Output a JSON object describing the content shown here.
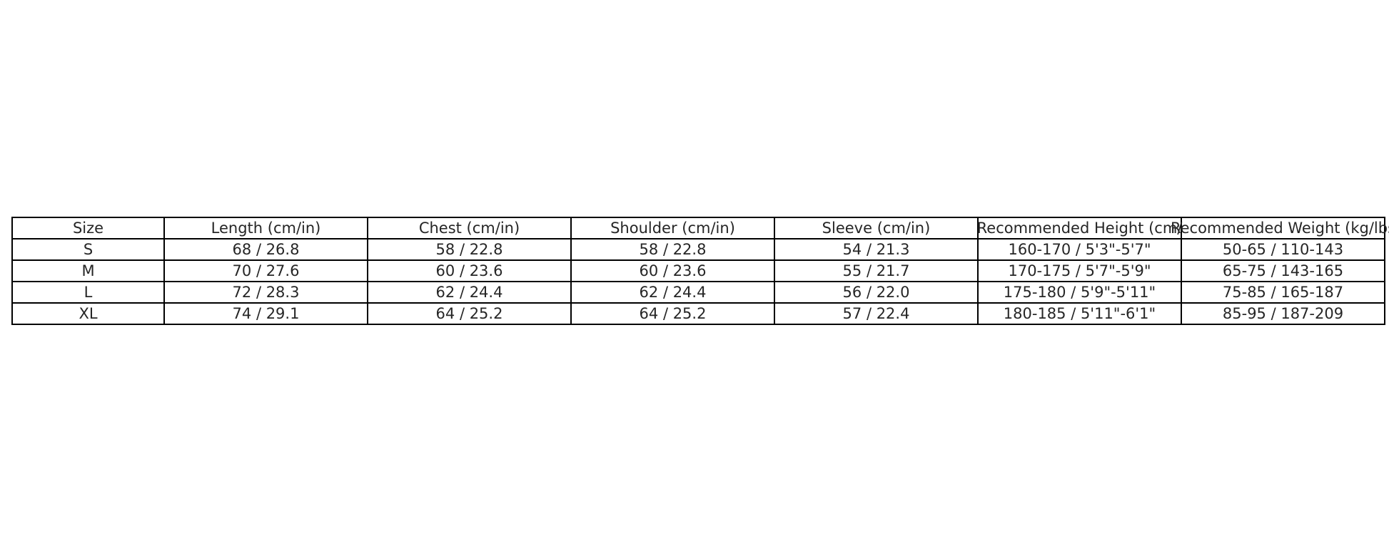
{
  "chart_data": {
    "type": "table",
    "columns": [
      "Size",
      "Length (cm/in)",
      "Chest (cm/in)",
      "Shoulder (cm/in)",
      "Sleeve (cm/in)",
      "Recommended Height (cm/",
      "Recommended Weight (kg/lbs"
    ],
    "rows": [
      [
        "S",
        "68 / 26.8",
        "58 / 22.8",
        "58 / 22.8",
        "54 / 21.3",
        "160-170 / 5'3\"-5'7\"",
        "50-65 / 110-143"
      ],
      [
        "M",
        "70 / 27.6",
        "60 / 23.6",
        "60 / 23.6",
        "55 / 21.7",
        "170-175 / 5'7\"-5'9\"",
        "65-75 / 143-165"
      ],
      [
        "L",
        "72 / 28.3",
        "62 / 24.4",
        "62 / 24.4",
        "56 / 22.0",
        "175-180 / 5'9\"-5'11\"",
        "75-85 / 165-187"
      ],
      [
        "XL",
        "74 / 29.1",
        "64 / 25.2",
        "64 / 25.2",
        "57 / 22.4",
        "180-185 / 5'11\"-6'1\"",
        "85-95 / 187-209"
      ]
    ]
  }
}
